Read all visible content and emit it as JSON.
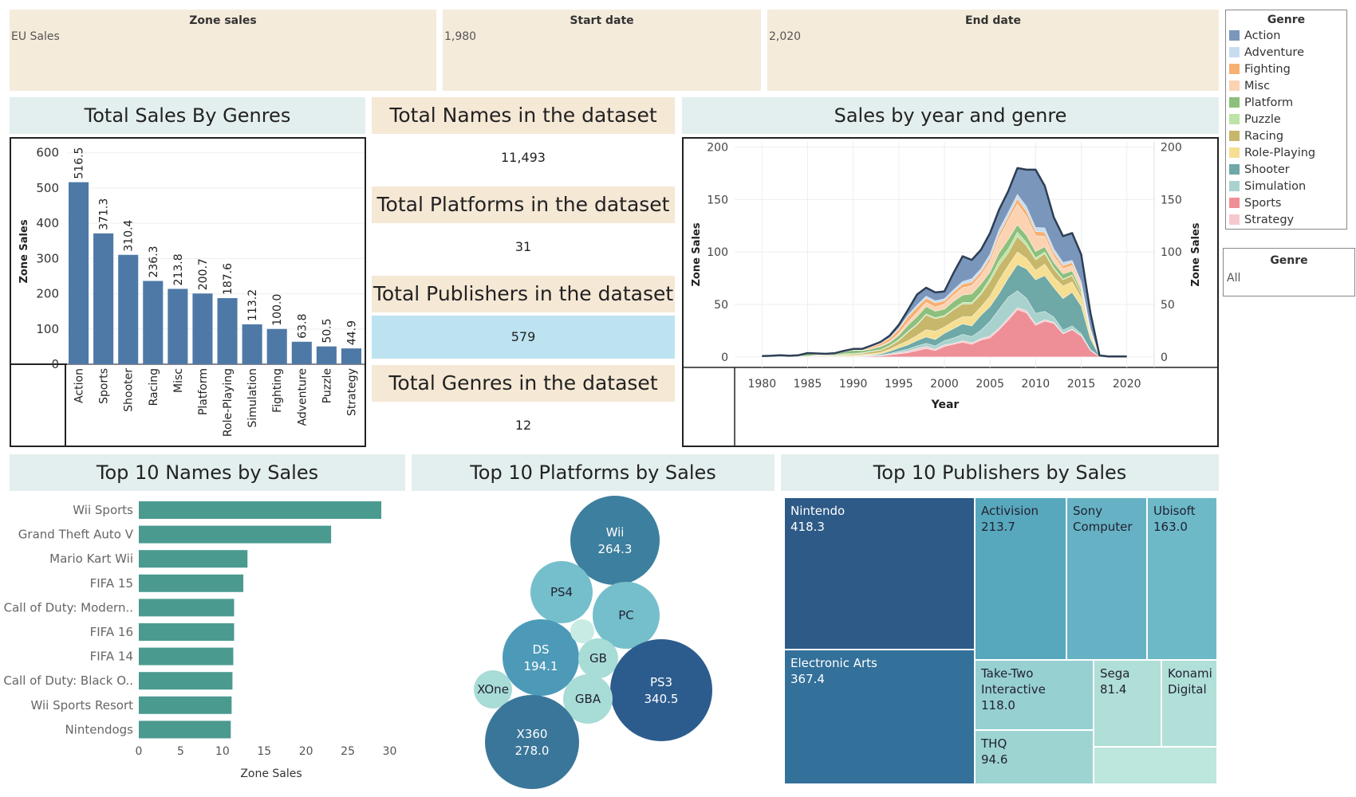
{
  "filters": {
    "zone": {
      "label": "Zone sales",
      "value": "EU Sales"
    },
    "start": {
      "label": "Start date",
      "value": "1,980"
    },
    "end": {
      "label": "End date",
      "value": "2,020"
    },
    "genre": {
      "label": "Genre",
      "value": "All"
    }
  },
  "legend": {
    "title": "Genre",
    "items": [
      {
        "label": "Action",
        "color": "#7b96bb"
      },
      {
        "label": "Adventure",
        "color": "#c7dcef"
      },
      {
        "label": "Fighting",
        "color": "#f7b072"
      },
      {
        "label": "Misc",
        "color": "#fbd3b3"
      },
      {
        "label": "Platform",
        "color": "#8cc07c"
      },
      {
        "label": "Puzzle",
        "color": "#bde4a6"
      },
      {
        "label": "Racing",
        "color": "#c7b76a"
      },
      {
        "label": "Role-Playing",
        "color": "#f6df92"
      },
      {
        "label": "Shooter",
        "color": "#6ea8a7"
      },
      {
        "label": "Simulation",
        "color": "#a9d2ce"
      },
      {
        "label": "Sports",
        "color": "#ee8e96"
      },
      {
        "label": "Strategy",
        "color": "#f6c9cd"
      }
    ]
  },
  "kpis": {
    "names_title": "Total Names in the dataset",
    "names_value": "11,493",
    "platforms_title": "Total Platforms in the dataset",
    "platforms_value": "31",
    "publishers_title": "Total Publishers in the dataset",
    "publishers_value": "579",
    "genres_title": "Total Genres in the dataset",
    "genres_value": "12"
  },
  "chart_data": [
    {
      "type": "bar",
      "title": "Total Sales By Genres",
      "ylabel": "Zone Sales",
      "ylim": [
        0,
        640
      ],
      "yticks": [
        0,
        100,
        200,
        300,
        400,
        500,
        600
      ],
      "categories": [
        "Action",
        "Sports",
        "Shooter",
        "Racing",
        "Misc",
        "Platform",
        "Role-Playing",
        "Simulation",
        "Fighting",
        "Adventure",
        "Puzzle",
        "Strategy"
      ],
      "values": [
        516.5,
        371.3,
        310.4,
        236.3,
        213.8,
        200.7,
        187.6,
        113.2,
        100.0,
        63.8,
        50.5,
        44.9
      ],
      "labels": [
        "516.5",
        "371.3",
        "310.4",
        "236.3",
        "213.8",
        "200.7",
        "187.6",
        "113.2",
        "100.0",
        "63.8",
        "50.5",
        "44.9"
      ],
      "color": "#4e79a7"
    },
    {
      "type": "area",
      "title": "Sales by year and genre",
      "xlabel": "Year",
      "ylabel": "Zone Sales",
      "ylabel_right": "Zone Sales",
      "xlim": [
        1977,
        2023
      ],
      "ylim": [
        -10,
        205
      ],
      "xticks": [
        1980,
        1985,
        1990,
        1995,
        2000,
        2005,
        2010,
        2015,
        2020
      ],
      "yticks": [
        0,
        50,
        100,
        150,
        200
      ],
      "years": [
        1980,
        1981,
        1982,
        1983,
        1984,
        1985,
        1986,
        1987,
        1988,
        1989,
        1990,
        1991,
        1992,
        1993,
        1994,
        1995,
        1996,
        1997,
        1998,
        1999,
        2000,
        2001,
        2002,
        2003,
        2004,
        2005,
        2006,
        2007,
        2008,
        2009,
        2010,
        2011,
        2012,
        2013,
        2014,
        2015,
        2016,
        2017,
        2018,
        2019,
        2020
      ],
      "series": [
        {
          "name": "Sports",
          "values": [
            0,
            0,
            0,
            0,
            0,
            0,
            0.5,
            0.3,
            0.2,
            0.2,
            0.3,
            0.5,
            0.8,
            1,
            2,
            3,
            4,
            6,
            8,
            6,
            10,
            12,
            14,
            12,
            16,
            18,
            26,
            35,
            45,
            42,
            30,
            34,
            32,
            22,
            26,
            20,
            6,
            0.3,
            0,
            0,
            0
          ]
        },
        {
          "name": "Strategy",
          "values": [
            0,
            0,
            0,
            0,
            0,
            0,
            0,
            0,
            0,
            0,
            0,
            0.2,
            0.3,
            0.3,
            0.5,
            1,
            1.5,
            2,
            2,
            1.5,
            1.5,
            1,
            1.5,
            1.5,
            1.5,
            2,
            1.5,
            2,
            2,
            2,
            1.5,
            1.5,
            1,
            0.6,
            0.6,
            0.4,
            0.2,
            0,
            0,
            0,
            0
          ]
        },
        {
          "name": "Simulation",
          "values": [
            0,
            0,
            0,
            0,
            0,
            0,
            0,
            0,
            0,
            0,
            0.2,
            0.3,
            0.5,
            0.5,
            0.8,
            1.5,
            2,
            2.5,
            3,
            3,
            4,
            5,
            6,
            6,
            8,
            14,
            18,
            20,
            16,
            12,
            10,
            8,
            5,
            3,
            3,
            2,
            1,
            0,
            0,
            0,
            0
          ]
        },
        {
          "name": "Shooter",
          "values": [
            0.3,
            0.5,
            0.3,
            0.2,
            0.2,
            0.3,
            0.3,
            0.3,
            0.2,
            0.3,
            0.3,
            0.5,
            0.5,
            1,
            2,
            3,
            4,
            5,
            6,
            6,
            7,
            9,
            10,
            10,
            14,
            14,
            15,
            18,
            25,
            28,
            32,
            34,
            28,
            30,
            32,
            26,
            10,
            0.3,
            0,
            0,
            0
          ]
        },
        {
          "name": "Role-Playing",
          "values": [
            0,
            0,
            0,
            0,
            0,
            0,
            0.5,
            0.5,
            0.5,
            1,
            1,
            1,
            1,
            1.5,
            2,
            3,
            4,
            5,
            7,
            8,
            6,
            7,
            7,
            9,
            8,
            10,
            13,
            12,
            12,
            10,
            9,
            11,
            10,
            12,
            10,
            8,
            4,
            0.3,
            0,
            0,
            0
          ]
        },
        {
          "name": "Racing",
          "values": [
            0,
            0,
            0,
            0,
            0.5,
            0.3,
            0.3,
            0.3,
            0.5,
            0.5,
            1,
            1,
            2,
            2,
            3,
            4,
            8,
            10,
            14,
            12,
            10,
            11,
            12,
            12,
            12,
            14,
            14,
            12,
            15,
            12,
            10,
            10,
            8,
            6,
            6,
            4,
            2,
            0,
            0,
            0,
            0
          ]
        },
        {
          "name": "Puzzle",
          "values": [
            0.5,
            0.3,
            0.5,
            0.3,
            0.3,
            0.3,
            0.3,
            0.2,
            0.3,
            1,
            0.5,
            0.5,
            0.5,
            0.5,
            0.5,
            1,
            0.8,
            1,
            1,
            1,
            1,
            1,
            1.5,
            1.5,
            2,
            3,
            4,
            4,
            4,
            3,
            2,
            1.5,
            1,
            0.5,
            0.5,
            0.3,
            0.1,
            0,
            0,
            0,
            0
          ]
        },
        {
          "name": "Platform",
          "values": [
            0,
            0.3,
            0.3,
            0.3,
            0.3,
            2,
            0.5,
            0.5,
            1,
            2,
            3,
            2,
            2,
            3,
            3,
            4,
            6,
            7,
            7,
            6,
            6,
            7,
            7,
            8,
            8,
            6,
            8,
            9,
            7,
            7,
            6,
            5,
            5,
            5,
            4,
            3,
            1,
            0,
            0,
            0,
            0
          ]
        },
        {
          "name": "Misc",
          "values": [
            0,
            0,
            0.3,
            0.2,
            0.3,
            0.3,
            0.3,
            0.3,
            0.3,
            0.3,
            0.5,
            0.5,
            0.5,
            1,
            1,
            2,
            3,
            4,
            4,
            4,
            5,
            6,
            7,
            8,
            8,
            10,
            14,
            18,
            20,
            18,
            15,
            10,
            6,
            5,
            5,
            4,
            1,
            0,
            0,
            0,
            0
          ]
        },
        {
          "name": "Fighting",
          "values": [
            0,
            0,
            0,
            0,
            0,
            0.3,
            0.3,
            0.3,
            0.3,
            0.3,
            0.5,
            0.5,
            1.5,
            2,
            3,
            4,
            5,
            5,
            4,
            4,
            3,
            3,
            3.5,
            3.5,
            3.5,
            3.5,
            4,
            4,
            5,
            5,
            4,
            4,
            3.5,
            3,
            3,
            2,
            1,
            0,
            0,
            0,
            0
          ]
        },
        {
          "name": "Adventure",
          "values": [
            0,
            0,
            0,
            0,
            0,
            0,
            0,
            0,
            0,
            0,
            0,
            0.2,
            0.5,
            0.5,
            0.5,
            1,
            1.5,
            2,
            2,
            2,
            2,
            2,
            2.5,
            3,
            3,
            3.5,
            4,
            4,
            4,
            4.5,
            4,
            4,
            3.5,
            3,
            2,
            2,
            1,
            0,
            0,
            0,
            0
          ]
        },
        {
          "name": "Action",
          "values": [
            0,
            0,
            0.2,
            0.1,
            0,
            0.2,
            0.3,
            0.3,
            0.3,
            0.2,
            0.3,
            0.5,
            0.8,
            1,
            2,
            3,
            5,
            10,
            8,
            8,
            7,
            16,
            24,
            18,
            18,
            20,
            19,
            20,
            25,
            35,
            55,
            40,
            30,
            25,
            26,
            26,
            15,
            0.5,
            0.5,
            0.5,
            0.5
          ]
        }
      ]
    },
    {
      "type": "bar",
      "orientation": "horizontal",
      "title": "Top 10 Names by Sales",
      "xlabel": "Zone Sales",
      "xlim": [
        0,
        31
      ],
      "xticks": [
        0,
        5,
        10,
        15,
        20,
        25,
        30
      ],
      "categories": [
        "Wii Sports",
        "Grand Theft Auto V",
        "Mario Kart Wii",
        "FIFA 15",
        "Call of Duty: Modern..",
        "FIFA 16",
        "FIFA 14",
        "Call of Duty: Black O..",
        "Wii Sports Resort",
        "Nintendogs"
      ],
      "values": [
        29.0,
        23.0,
        13.0,
        12.5,
        11.4,
        11.4,
        11.3,
        11.2,
        11.1,
        11.0
      ],
      "color": "#4a9a90"
    },
    {
      "type": "bubble",
      "title": "Top 10 Platforms by Sales",
      "items": [
        {
          "name": "Wii",
          "value": "264.3",
          "color": "#3d7f9e"
        },
        {
          "name": "PS4",
          "value": "",
          "color": "#74bfcb"
        },
        {
          "name": "PC",
          "value": "",
          "color": "#74bfcb"
        },
        {
          "name": "DS",
          "value": "194.1",
          "color": "#4d9ab8"
        },
        {
          "name": "GB",
          "value": "",
          "color": "#a8dcd6"
        },
        {
          "name": "PS3",
          "value": "340.5",
          "color": "#2c5c8e"
        },
        {
          "name": "XOne",
          "value": "",
          "color": "#a8dcd6"
        },
        {
          "name": "GBA",
          "value": "",
          "color": "#a8dcd6"
        },
        {
          "name": "X360",
          "value": "278.0",
          "color": "#3a7699"
        },
        {
          "name": "",
          "value": "",
          "color": "#c8ebe3"
        }
      ]
    },
    {
      "type": "treemap",
      "title": "Top 10 Publishers by Sales",
      "items": [
        {
          "name": "Nintendo",
          "value": "418.3",
          "color": "#2d5a87"
        },
        {
          "name": "Electronic Arts",
          "value": "367.4",
          "color": "#33709a"
        },
        {
          "name": "Activision",
          "value": "213.7",
          "color": "#58a8bd"
        },
        {
          "name": "Sony Computer",
          "value": "",
          "color": "#66b2c4"
        },
        {
          "name": "Ubisoft",
          "value": "163.0",
          "color": "#6db9c8"
        },
        {
          "name": "Take-Two Interactive",
          "value": "118.0",
          "color": "#96d0d0"
        },
        {
          "name": "THQ",
          "value": "94.6",
          "color": "#9dd4d1"
        },
        {
          "name": "Sega",
          "value": "81.4",
          "color": "#afdfd6"
        },
        {
          "name": "Konami Digital",
          "value": "",
          "color": "#b1e0d8"
        },
        {
          "name": "",
          "value": "",
          "color": "#bde6dc"
        }
      ]
    }
  ]
}
